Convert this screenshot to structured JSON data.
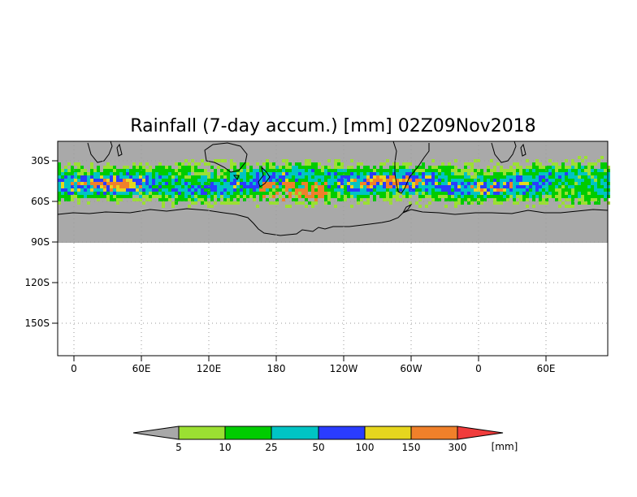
{
  "title": "Rainfall (7-day accum.) [mm] 02Z09Nov2018",
  "map": {
    "lat_labels": [
      "30S",
      "60S",
      "90S",
      "120S",
      "150S"
    ],
    "lon_labels": [
      "0",
      "60E",
      "120E",
      "180",
      "120W",
      "60W",
      "0",
      "60E"
    ],
    "data_band_note": "",
    "colors": {
      "land_mask": "#a9a9a9",
      "coast": "#000000",
      "grid": "#b0b0b0"
    }
  },
  "colorbar": {
    "levels": [
      "5",
      "10",
      "25",
      "50",
      "100",
      "150",
      "300"
    ],
    "unit": "[mm]",
    "colors": [
      "#a8a8a8",
      "#9be032",
      "#00cc00",
      "#00c4c4",
      "#2a3cff",
      "#e6d61e",
      "#f0802a",
      "#f03c3c"
    ]
  }
}
